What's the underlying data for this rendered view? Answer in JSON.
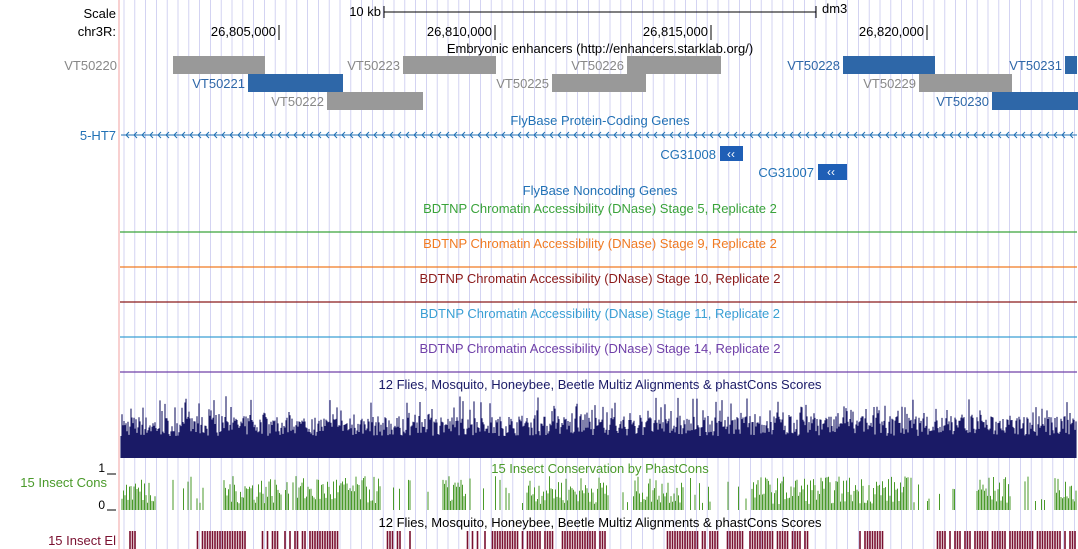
{
  "colors": {
    "label_gray": "#888888",
    "enhancer_gray": "#999999",
    "enhancer_blue": "#2e67a8",
    "gene_blue": "#1f5fb6",
    "gene_text": "#2171b5",
    "guide_line": "#c8c8ee",
    "left_border": "#f2a0a0",
    "stage5": "#3aa33a",
    "stage9": "#f07a22",
    "stage10": "#8b1a1a",
    "stage11": "#3a9fd4",
    "stage14": "#7040a8",
    "multiz": "#1a1a66",
    "phastcons": "#4a9a2a",
    "elements": "#7a1030"
  },
  "ruler": {
    "scale_label": "Scale",
    "chrom_label": "chr3R:",
    "scale_bar_label": "10 kb",
    "assembly": "dm3",
    "positions": [
      "26,805,000",
      "26,810,000",
      "26,815,000",
      "26,820,000"
    ]
  },
  "enhancers": {
    "title": "Embryonic enhancers (http://enhancers.starklab.org/)",
    "items": [
      {
        "label": "VT50220",
        "color": "gray"
      },
      {
        "label": "VT50221",
        "color": "blue"
      },
      {
        "label": "VT50222",
        "color": "gray"
      },
      {
        "label": "VT50223",
        "color": "gray"
      },
      {
        "label": "VT50225",
        "color": "gray"
      },
      {
        "label": "VT50226",
        "color": "gray"
      },
      {
        "label": "VT50228",
        "color": "blue"
      },
      {
        "label": "VT50229",
        "color": "gray"
      },
      {
        "label": "VT50230",
        "color": "blue"
      },
      {
        "label": "VT50231",
        "color": "blue"
      }
    ]
  },
  "genes": {
    "title": "FlyBase Protein-Coding Genes",
    "items": [
      {
        "label": "5-HT7"
      },
      {
        "label": "CG31008"
      },
      {
        "label": "CG31007"
      }
    ]
  },
  "noncoding": {
    "title": "FlyBase Noncoding Genes"
  },
  "dnase": [
    {
      "title": "BDTNP Chromatin Accessibility (DNase) Stage 5, Replicate 2",
      "color_key": "stage5"
    },
    {
      "title": "BDTNP Chromatin Accessibility (DNase) Stage 9, Replicate 2",
      "color_key": "stage9"
    },
    {
      "title": "BDTNP Chromatin Accessibility (DNase) Stage 10, Replicate 2",
      "color_key": "stage10"
    },
    {
      "title": "BDTNP Chromatin Accessibility (DNase) Stage 11, Replicate 2",
      "color_key": "stage11"
    },
    {
      "title": "BDTNP Chromatin Accessibility (DNase) Stage 14, Replicate 2",
      "color_key": "stage14"
    }
  ],
  "multiz": {
    "title": "12 Flies, Mosquito, Honeybee, Beetle Multiz Alignments & phastCons Scores"
  },
  "phastcons": {
    "title": "15 Insect Conservation by PhastCons",
    "side_label": "15 Insect Cons",
    "y_max_label": "1",
    "y_min_label": "0"
  },
  "elements": {
    "title": "12 Flies, Mosquito, Honeybee, Beetle Multiz Alignments & phastCons Scores",
    "side_label": "15 Insect El"
  }
}
